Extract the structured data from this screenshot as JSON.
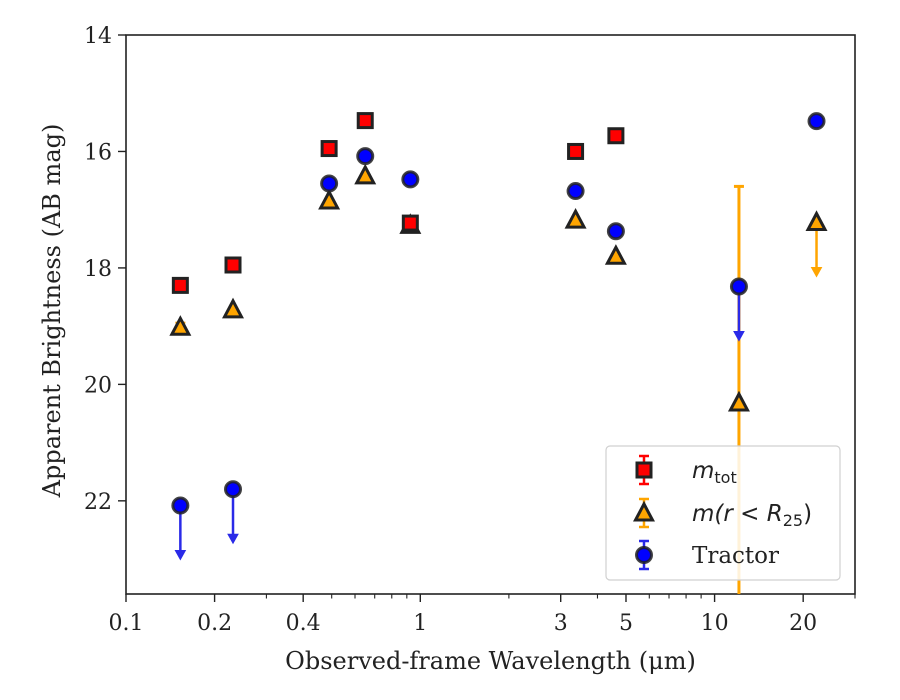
{
  "chart_data": {
    "type": "scatter",
    "xlabel": "Observed-frame Wavelength (μm)",
    "ylabel": "Apparent Brightness (AB mag)",
    "xscale": "log",
    "xlim": [
      0.1,
      30
    ],
    "ylim": [
      23.6,
      14
    ],
    "y_inverted": true,
    "grid": false,
    "legend_position": "lower-right",
    "x_ticks": [
      {
        "value": 0.1,
        "label": "0.1"
      },
      {
        "value": 0.2,
        "label": "0.2"
      },
      {
        "value": 0.4,
        "label": "0.4"
      },
      {
        "value": 1,
        "label": "1"
      },
      {
        "value": 3,
        "label": "3"
      },
      {
        "value": 5,
        "label": "5"
      },
      {
        "value": 10,
        "label": "10"
      },
      {
        "value": 20,
        "label": "20"
      }
    ],
    "y_ticks": [
      {
        "value": 14,
        "label": "14"
      },
      {
        "value": 16,
        "label": "16"
      },
      {
        "value": 18,
        "label": "18"
      },
      {
        "value": 20,
        "label": "20"
      },
      {
        "value": 22,
        "label": "22"
      }
    ],
    "series": [
      {
        "key": "mtot",
        "name": "m",
        "name_subscript": "tot",
        "marker": "square",
        "color": "#ff0000",
        "edge": "#222222",
        "points": [
          {
            "x": 0.153,
            "y": 18.3
          },
          {
            "x": 0.231,
            "y": 17.95
          },
          {
            "x": 0.49,
            "y": 15.95
          },
          {
            "x": 0.65,
            "y": 15.47
          },
          {
            "x": 0.925,
            "y": 17.23
          },
          {
            "x": 3.37,
            "y": 16.0
          },
          {
            "x": 4.62,
            "y": 15.73
          }
        ]
      },
      {
        "key": "mr25",
        "name": "m(r < R",
        "name_subscript": "25",
        "name_suffix": ")",
        "marker": "triangle",
        "color": "#ffa500",
        "edge": "#222222",
        "points": [
          {
            "x": 0.153,
            "y": 19.02,
            "err": 0.08
          },
          {
            "x": 0.231,
            "y": 18.72
          },
          {
            "x": 0.49,
            "y": 16.85
          },
          {
            "x": 0.65,
            "y": 16.42
          },
          {
            "x": 0.925,
            "y": 17.27
          },
          {
            "x": 3.37,
            "y": 17.18
          },
          {
            "x": 4.62,
            "y": 17.8
          },
          {
            "x": 12.1,
            "y": 20.32,
            "err_low": 16.6,
            "err_high": 23.6
          },
          {
            "x": 22.2,
            "y": 17.22,
            "upper_limit": true
          }
        ]
      },
      {
        "key": "tractor",
        "name": "Tractor",
        "marker": "circle",
        "color": "#0000ff",
        "edge": "#222222",
        "points": [
          {
            "x": 0.153,
            "y": 22.08,
            "upper_limit": true
          },
          {
            "x": 0.231,
            "y": 21.8,
            "upper_limit": true
          },
          {
            "x": 0.49,
            "y": 16.55
          },
          {
            "x": 0.65,
            "y": 16.08
          },
          {
            "x": 0.925,
            "y": 16.48
          },
          {
            "x": 3.37,
            "y": 16.68
          },
          {
            "x": 4.62,
            "y": 17.37
          },
          {
            "x": 12.1,
            "y": 18.32,
            "upper_limit": true
          },
          {
            "x": 22.2,
            "y": 15.48
          }
        ]
      }
    ]
  }
}
